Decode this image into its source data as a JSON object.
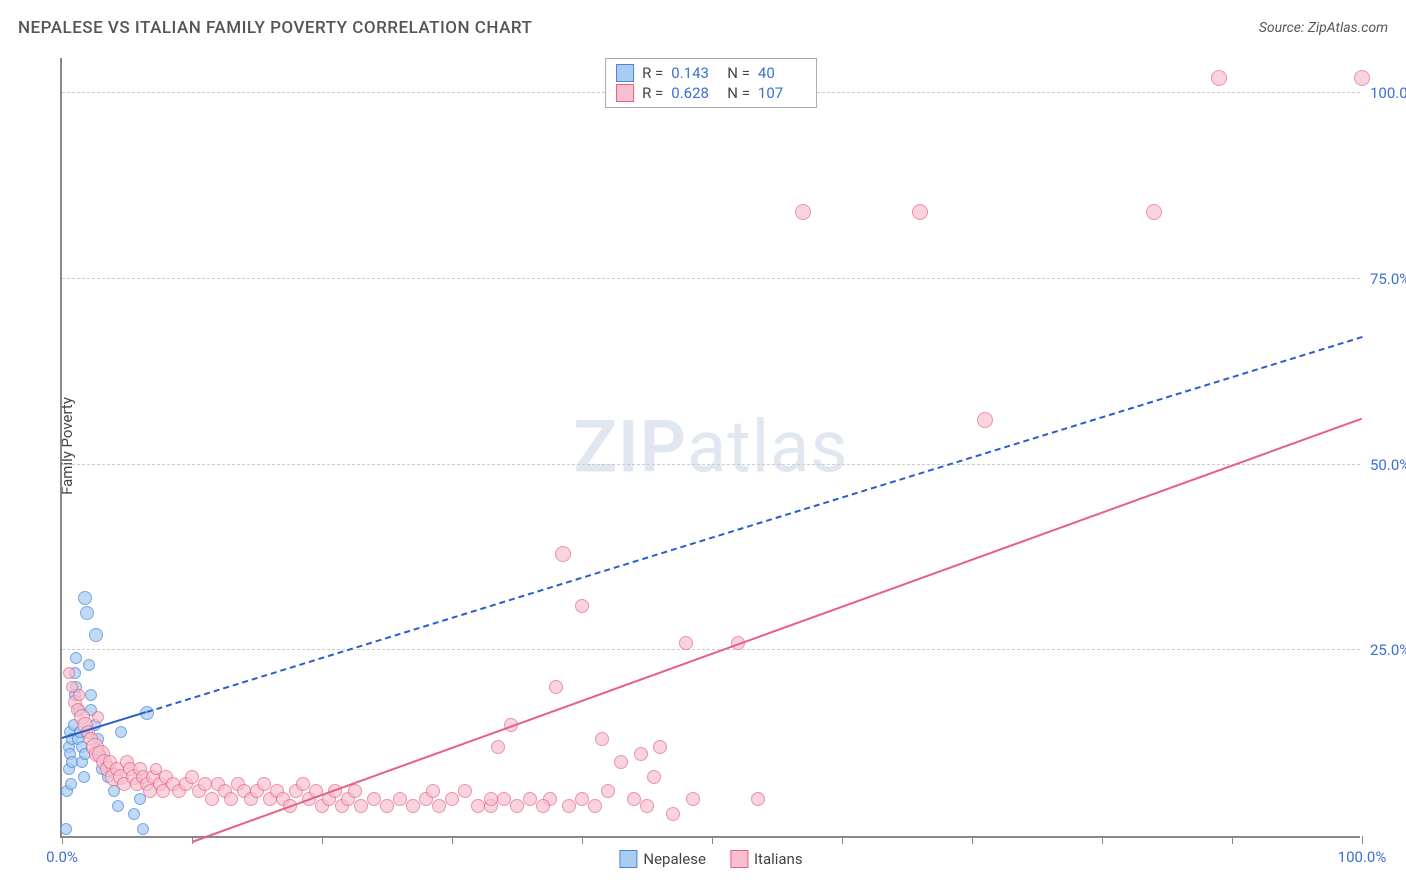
{
  "title": "NEPALESE VS ITALIAN FAMILY POVERTY CORRELATION CHART",
  "source_label": "Source: ZipAtlas.com",
  "y_axis_label": "Family Poverty",
  "watermark": {
    "bold": "ZIP",
    "rest": "atlas"
  },
  "chart": {
    "type": "scatter",
    "xlim": [
      0,
      100
    ],
    "ylim": [
      0,
      105
    ],
    "background_color": "#ffffff",
    "grid_color": "#cccccc",
    "axis_color": "#888888",
    "tick_label_color": "#3b6fd6",
    "tick_fontsize": 15,
    "y_gridlines": [
      25,
      50,
      75,
      100
    ],
    "y_tick_labels": [
      "25.0%",
      "50.0%",
      "75.0%",
      "100.0%"
    ],
    "x_ticks": [
      0,
      10,
      20,
      30,
      40,
      50,
      60,
      70,
      80,
      90,
      100
    ],
    "x_tick_labels": {
      "0": "0.0%",
      "100": "100.0%"
    },
    "series": [
      {
        "name": "Nepalese",
        "marker_fill": "#a9cdf2",
        "marker_stroke": "#4a86d8",
        "marker_opacity": 0.72,
        "trend_color": "#2a5fc9",
        "trend_dash": true,
        "trend_width": 2,
        "trend_start": [
          0,
          13
        ],
        "trend_end": [
          100,
          67
        ],
        "solid_segment_end_x": 6.5,
        "r": 0.143,
        "n": 40,
        "points": [
          [
            0.3,
            1
          ],
          [
            0.4,
            6
          ],
          [
            0.5,
            9
          ],
          [
            0.5,
            12
          ],
          [
            0.6,
            14
          ],
          [
            0.6,
            11
          ],
          [
            0.7,
            7
          ],
          [
            0.8,
            10
          ],
          [
            0.8,
            13
          ],
          [
            0.9,
            15
          ],
          [
            1.0,
            19
          ],
          [
            1.0,
            22
          ],
          [
            1.1,
            24
          ],
          [
            1.1,
            20
          ],
          [
            1.2,
            13
          ],
          [
            1.3,
            17
          ],
          [
            1.4,
            14
          ],
          [
            1.5,
            12
          ],
          [
            1.5,
            10
          ],
          [
            1.7,
            8
          ],
          [
            1.8,
            11
          ],
          [
            1.8,
            32
          ],
          [
            1.9,
            30
          ],
          [
            1.9,
            14
          ],
          [
            2.1,
            23
          ],
          [
            2.2,
            17
          ],
          [
            2.2,
            19
          ],
          [
            2.5,
            15
          ],
          [
            2.6,
            27
          ],
          [
            2.8,
            13
          ],
          [
            2.9,
            11
          ],
          [
            3.1,
            9
          ],
          [
            3.5,
            8
          ],
          [
            4.0,
            6
          ],
          [
            4.3,
            4
          ],
          [
            4.5,
            14
          ],
          [
            5.5,
            3
          ],
          [
            6.0,
            5
          ],
          [
            6.2,
            1
          ],
          [
            6.5,
            16.5
          ]
        ],
        "point_radii": [
          6,
          6,
          6,
          6,
          6,
          6,
          6,
          6,
          6,
          6,
          6,
          6,
          6,
          6,
          6,
          6,
          6,
          6,
          6,
          6,
          6,
          7,
          7,
          6,
          6,
          6,
          6,
          6,
          7,
          6,
          6,
          6,
          6,
          6,
          6,
          6,
          6,
          6,
          6,
          7
        ]
      },
      {
        "name": "Italians",
        "marker_fill": "#f7c0ce",
        "marker_stroke": "#e75f87",
        "marker_opacity": 0.68,
        "trend_color": "#e75f87",
        "trend_dash": false,
        "trend_width": 2.5,
        "trend_start": [
          10,
          -1
        ],
        "trend_end": [
          100,
          56
        ],
        "r": 0.628,
        "n": 107,
        "points": [
          [
            0.5,
            22
          ],
          [
            0.8,
            20
          ],
          [
            1.0,
            18
          ],
          [
            1.2,
            17
          ],
          [
            1.3,
            19
          ],
          [
            1.5,
            16
          ],
          [
            1.8,
            15
          ],
          [
            2.0,
            14
          ],
          [
            2.2,
            13
          ],
          [
            2.5,
            12
          ],
          [
            2.7,
            11
          ],
          [
            2.8,
            16
          ],
          [
            3.0,
            11
          ],
          [
            3.2,
            10
          ],
          [
            3.5,
            9
          ],
          [
            3.7,
            10
          ],
          [
            4.0,
            8
          ],
          [
            4.2,
            9
          ],
          [
            4.5,
            8
          ],
          [
            4.8,
            7
          ],
          [
            5.0,
            10
          ],
          [
            5.2,
            9
          ],
          [
            5.5,
            8
          ],
          [
            5.8,
            7
          ],
          [
            6.0,
            9
          ],
          [
            6.2,
            8
          ],
          [
            6.5,
            7
          ],
          [
            6.8,
            6
          ],
          [
            7.0,
            8
          ],
          [
            7.2,
            9
          ],
          [
            7.5,
            7
          ],
          [
            7.8,
            6
          ],
          [
            8.0,
            8
          ],
          [
            8.5,
            7
          ],
          [
            9.0,
            6
          ],
          [
            9.5,
            7
          ],
          [
            10.0,
            8
          ],
          [
            10.5,
            6
          ],
          [
            11.0,
            7
          ],
          [
            11.5,
            5
          ],
          [
            12.0,
            7
          ],
          [
            12.5,
            6
          ],
          [
            13.0,
            5
          ],
          [
            13.5,
            7
          ],
          [
            14.0,
            6
          ],
          [
            14.5,
            5
          ],
          [
            15.0,
            6
          ],
          [
            15.5,
            7
          ],
          [
            16.0,
            5
          ],
          [
            16.5,
            6
          ],
          [
            17.0,
            5
          ],
          [
            17.5,
            4
          ],
          [
            18.0,
            6
          ],
          [
            18.5,
            7
          ],
          [
            19.0,
            5
          ],
          [
            19.5,
            6
          ],
          [
            20.0,
            4
          ],
          [
            20.5,
            5
          ],
          [
            21.0,
            6
          ],
          [
            21.5,
            4
          ],
          [
            22.0,
            5
          ],
          [
            22.5,
            6
          ],
          [
            23.0,
            4
          ],
          [
            24.0,
            5
          ],
          [
            25.0,
            4
          ],
          [
            26.0,
            5
          ],
          [
            27.0,
            4
          ],
          [
            28.0,
            5
          ],
          [
            28.5,
            6
          ],
          [
            29.0,
            4
          ],
          [
            30.0,
            5
          ],
          [
            31.0,
            6
          ],
          [
            32.0,
            4
          ],
          [
            33.0,
            4
          ],
          [
            33.5,
            12
          ],
          [
            34.0,
            5
          ],
          [
            34.5,
            15
          ],
          [
            35.0,
            4
          ],
          [
            36.0,
            5
          ],
          [
            37.5,
            5
          ],
          [
            38.0,
            20
          ],
          [
            38.5,
            38
          ],
          [
            39.0,
            4
          ],
          [
            40.0,
            31
          ],
          [
            40.0,
            5
          ],
          [
            41.0,
            4
          ],
          [
            41.5,
            13
          ],
          [
            42.0,
            6
          ],
          [
            43.0,
            10
          ],
          [
            44.0,
            5
          ],
          [
            44.5,
            11
          ],
          [
            45.0,
            4
          ],
          [
            45.5,
            8
          ],
          [
            46.0,
            12
          ],
          [
            47.0,
            3
          ],
          [
            48.0,
            26
          ],
          [
            48.5,
            5
          ],
          [
            52.0,
            26
          ],
          [
            53.5,
            5
          ],
          [
            57.0,
            84
          ],
          [
            66.0,
            84
          ],
          [
            71.0,
            56
          ],
          [
            84.0,
            84
          ],
          [
            89.0,
            102
          ],
          [
            100.0,
            102
          ],
          [
            33.0,
            5
          ],
          [
            37.0,
            4
          ]
        ],
        "point_radii": [
          6,
          6,
          7,
          7,
          6,
          8,
          8,
          7,
          7,
          9,
          8,
          6,
          9,
          8,
          8,
          7,
          9,
          7,
          8,
          7,
          7,
          7,
          8,
          7,
          7,
          7,
          7,
          7,
          7,
          6,
          7,
          7,
          7,
          7,
          7,
          7,
          7,
          7,
          7,
          7,
          7,
          7,
          7,
          7,
          7,
          7,
          7,
          7,
          7,
          7,
          7,
          7,
          7,
          7,
          7,
          7,
          7,
          7,
          7,
          7,
          7,
          7,
          7,
          7,
          7,
          7,
          7,
          7,
          7,
          7,
          7,
          7,
          7,
          7,
          7,
          7,
          7,
          7,
          7,
          7,
          7,
          8,
          7,
          7,
          7,
          7,
          7,
          7,
          7,
          7,
          7,
          7,
          7,
          7,
          7,
          7,
          7,
          7,
          7,
          8,
          8,
          8,
          8,
          8,
          8,
          7,
          7
        ]
      }
    ]
  },
  "legend_top": {
    "r_label": "R =",
    "n_label": "N ="
  },
  "legend_bottom_labels": [
    "Nepalese",
    "Italians"
  ]
}
